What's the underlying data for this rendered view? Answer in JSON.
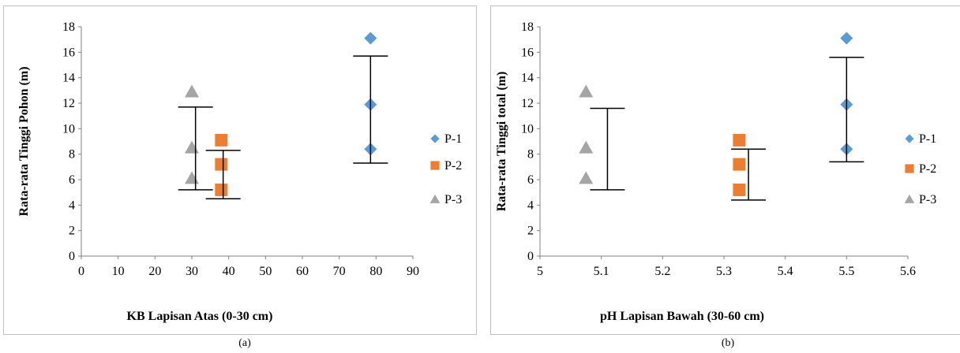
{
  "colors": {
    "P-1": "#5b9bd5",
    "P-2": "#ed7d31",
    "P-3": "#a5a5a5",
    "axis": "#808080",
    "errorbar": "#000000"
  },
  "captions": [
    "(a)",
    "(b)"
  ],
  "chart_data": [
    {
      "type": "scatter",
      "title": "",
      "xlabel": "KB Lapisan Atas (0-30 cm)",
      "ylabel": "Rata-rata Tinggi Pohon (m)",
      "xlim": [
        0,
        90
      ],
      "ylim": [
        0,
        18
      ],
      "xticks": [
        0,
        10,
        20,
        30,
        40,
        50,
        60,
        70,
        80,
        90
      ],
      "yticks": [
        0,
        2,
        4,
        6,
        8,
        10,
        12,
        14,
        16,
        18
      ],
      "grid": false,
      "legend_position": "right",
      "series": [
        {
          "name": "P-1",
          "marker": "diamond",
          "x": [
            78.5,
            78.5,
            78.5
          ],
          "y": [
            17.1,
            11.9,
            8.4
          ]
        },
        {
          "name": "P-2",
          "marker": "square",
          "x": [
            38,
            38,
            38
          ],
          "y": [
            9.1,
            7.2,
            5.2
          ]
        },
        {
          "name": "P-3",
          "marker": "triangle",
          "x": [
            30,
            30,
            30
          ],
          "y": [
            12.9,
            8.5,
            6.1
          ]
        }
      ],
      "error_bars": [
        {
          "x": 78.5,
          "low": 7.3,
          "high": 15.7
        },
        {
          "x": 38.5,
          "low": 4.5,
          "high": 8.3
        },
        {
          "x": 31,
          "low": 5.2,
          "high": 11.7
        }
      ]
    },
    {
      "type": "scatter",
      "title": "",
      "xlabel": "pH Lapisan Bawah (30-60 cm)",
      "ylabel": "Rata-rata Tinggi total (m)",
      "xlim": [
        5,
        5.6
      ],
      "ylim": [
        0,
        18
      ],
      "xticks": [
        "5",
        "5.1",
        "5.2",
        "5.3",
        "5.4",
        "5.5",
        "5.6"
      ],
      "yticks": [
        0,
        2,
        4,
        6,
        8,
        10,
        12,
        14,
        16,
        18
      ],
      "grid": false,
      "legend_position": "right",
      "series": [
        {
          "name": "P-1",
          "marker": "diamond",
          "x": [
            5.5,
            5.5,
            5.5
          ],
          "y": [
            17.1,
            11.9,
            8.4
          ]
        },
        {
          "name": "P-2",
          "marker": "square",
          "x": [
            5.325,
            5.325,
            5.325
          ],
          "y": [
            9.1,
            7.2,
            5.2
          ]
        },
        {
          "name": "P-3",
          "marker": "triangle",
          "x": [
            5.075,
            5.075,
            5.075
          ],
          "y": [
            12.9,
            8.5,
            6.1
          ]
        }
      ],
      "error_bars": [
        {
          "x": 5.5,
          "low": 7.4,
          "high": 15.6
        },
        {
          "x": 5.34,
          "low": 4.4,
          "high": 8.4
        },
        {
          "x": 5.11,
          "low": 5.2,
          "high": 11.6
        }
      ]
    }
  ]
}
